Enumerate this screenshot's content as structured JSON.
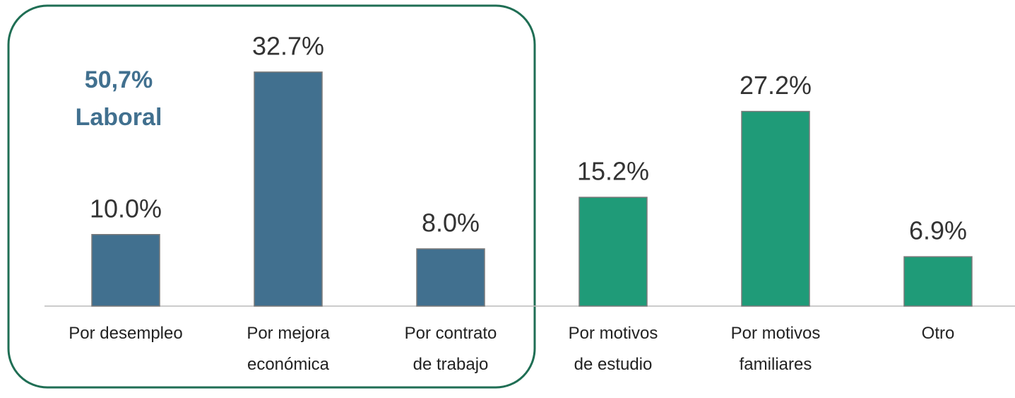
{
  "chart_data": {
    "type": "bar",
    "annotation": [
      "50,7%",
      "Laboral"
    ],
    "categories": [
      "Por desempleo",
      "Por mejora\neconómica",
      "Por contrato\nde trabajo",
      "Por motivos\nde estudio",
      "Por motivos\nfamiliares",
      "Otro"
    ],
    "values": [
      10.0,
      32.7,
      8.0,
      15.2,
      27.2,
      6.9
    ],
    "value_labels": [
      "10.0%",
      "32.7%",
      "8.0%",
      "15.2%",
      "27.2%",
      "6.9%"
    ],
    "colors": [
      "#41708f",
      "#41708f",
      "#41708f",
      "#1f9b78",
      "#1f9b78",
      "#1f9b78"
    ],
    "ylim": [
      0,
      40
    ]
  }
}
